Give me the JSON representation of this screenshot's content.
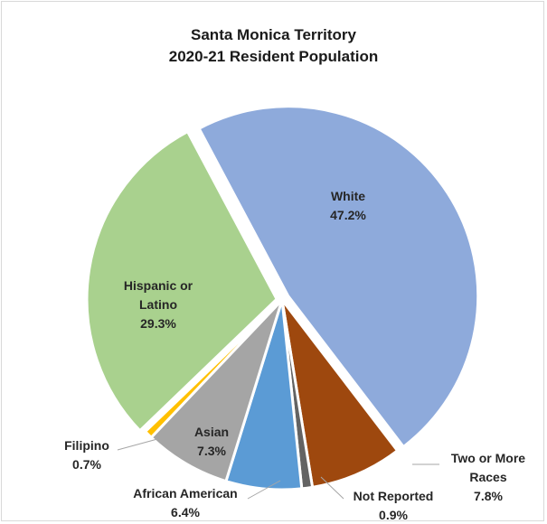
{
  "chart_data": {
    "type": "pie",
    "title": "Santa Monica Territory",
    "subtitle": "2020-21 Resident Population",
    "slices": [
      {
        "label": "White",
        "value": 47.2,
        "value_label": "47.2%",
        "color": "#8eaadb"
      },
      {
        "label": "Two or More Races",
        "value": 7.8,
        "value_label": "7.8%",
        "color": "#9e480e"
      },
      {
        "label": "Not Reported",
        "value": 0.9,
        "value_label": "0.9%",
        "color": "#636363"
      },
      {
        "label": "African American",
        "value": 6.4,
        "value_label": "6.4%",
        "color": "#5b9bd5"
      },
      {
        "label": "Asian",
        "value": 7.3,
        "value_label": "7.3%",
        "color": "#a5a5a5"
      },
      {
        "label": "Filipino",
        "value": 0.7,
        "value_label": "0.7%",
        "color": "#ffc000"
      },
      {
        "label": "Hispanic or Latino",
        "value": 29.3,
        "value_label": "29.3%",
        "color": "#a9d18e"
      }
    ],
    "legend": "none",
    "data_labels": "category and percentage"
  }
}
